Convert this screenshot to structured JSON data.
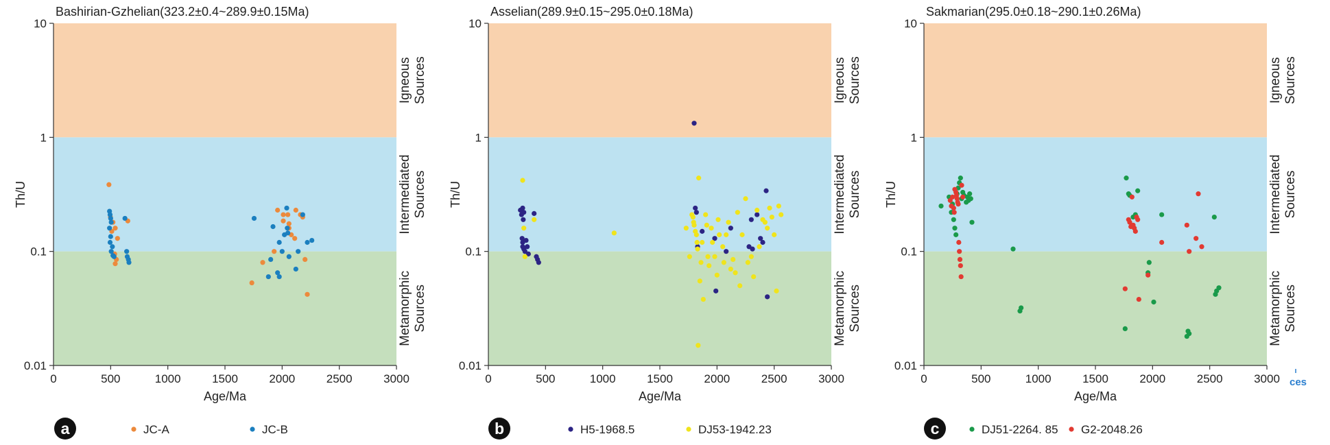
{
  "chart_data": [
    {
      "type": "scatter",
      "panel_letter": "a",
      "title": "Bashirian-Gzhelian(323.2±0.4~289.9±0.15Ma)",
      "xlabel": "Age/Ma",
      "ylabel": "Th/U",
      "xlim": [
        0,
        3000
      ],
      "ylim": [
        0.01,
        10
      ],
      "yscale": "log",
      "x_ticks": [
        "0",
        "500",
        "1000",
        "1500",
        "2000",
        "2500",
        "3000"
      ],
      "y_ticks": [
        "0.01",
        "0.1",
        "1",
        "10"
      ],
      "regions": [
        {
          "label": [
            "Igneous",
            "Sources"
          ],
          "from": 1,
          "to": 10,
          "color": "#f9d2ae"
        },
        {
          "label": [
            "Intermediated",
            "Sources"
          ],
          "from": 0.1,
          "to": 1,
          "color": "#bde2f1"
        },
        {
          "label": [
            "Metamorphic",
            "Sources"
          ],
          "from": 0.01,
          "to": 0.1,
          "color": "#c5dfbd"
        }
      ],
      "series": [
        {
          "name": "JC-A",
          "color": "#ec8a3c",
          "points": [
            [
              485,
              0.385
            ],
            [
              498,
              0.2
            ],
            [
              520,
              0.18
            ],
            [
              540,
              0.16
            ],
            [
              510,
              0.15
            ],
            [
              560,
              0.13
            ],
            [
              535,
              0.095
            ],
            [
              550,
              0.085
            ],
            [
              540,
              0.078
            ],
            [
              650,
              0.185
            ],
            [
              1735,
              0.053
            ],
            [
              1830,
              0.08
            ],
            [
              1930,
              0.1
            ],
            [
              1960,
              0.23
            ],
            [
              2010,
              0.21
            ],
            [
              2010,
              0.185
            ],
            [
              2050,
              0.21
            ],
            [
              2060,
              0.16
            ],
            [
              2060,
              0.175
            ],
            [
              2080,
              0.14
            ],
            [
              2110,
              0.13
            ],
            [
              2120,
              0.23
            ],
            [
              2160,
              0.21
            ],
            [
              2180,
              0.2
            ],
            [
              2200,
              0.085
            ],
            [
              2220,
              0.042
            ]
          ]
        },
        {
          "name": "JC-B",
          "color": "#1b7fbf",
          "points": [
            [
              490,
              0.225
            ],
            [
              495,
              0.21
            ],
            [
              500,
              0.195
            ],
            [
              505,
              0.18
            ],
            [
              490,
              0.16
            ],
            [
              500,
              0.135
            ],
            [
              495,
              0.12
            ],
            [
              515,
              0.11
            ],
            [
              505,
              0.1
            ],
            [
              520,
              0.092
            ],
            [
              530,
              0.09
            ],
            [
              625,
              0.195
            ],
            [
              640,
              0.1
            ],
            [
              645,
              0.09
            ],
            [
              655,
              0.085
            ],
            [
              660,
              0.08
            ],
            [
              1755,
              0.195
            ],
            [
              1880,
              0.06
            ],
            [
              1900,
              0.085
            ],
            [
              1920,
              0.165
            ],
            [
              1960,
              0.065
            ],
            [
              1975,
              0.06
            ],
            [
              1975,
              0.12
            ],
            [
              2000,
              0.1
            ],
            [
              2020,
              0.14
            ],
            [
              2040,
              0.24
            ],
            [
              2045,
              0.16
            ],
            [
              2050,
              0.145
            ],
            [
              2060,
              0.09
            ],
            [
              2120,
              0.07
            ],
            [
              2140,
              0.1
            ],
            [
              2180,
              0.21
            ],
            [
              2220,
              0.12
            ],
            [
              2260,
              0.125
            ]
          ]
        }
      ],
      "legend": [
        "JC-A",
        "JC-B"
      ]
    },
    {
      "type": "scatter",
      "panel_letter": "b",
      "title": "Asselian(289.9±0.15~295.0±0.18Ma)",
      "xlabel": "Age/Ma",
      "ylabel": "Th/U",
      "xlim": [
        0,
        3000
      ],
      "ylim": [
        0.01,
        10
      ],
      "yscale": "log",
      "x_ticks": [
        "0",
        "500",
        "1000",
        "1500",
        "2000",
        "2500",
        "3000"
      ],
      "y_ticks": [
        "0.01",
        "0.1",
        "1",
        "10"
      ],
      "regions": [
        {
          "label": [
            "Igneous",
            "Sources"
          ],
          "from": 1,
          "to": 10,
          "color": "#f9d2ae"
        },
        {
          "label": [
            "Intermediated",
            "Sources"
          ],
          "from": 0.1,
          "to": 1,
          "color": "#bde2f1"
        },
        {
          "label": [
            "Metamorphic",
            "Sources"
          ],
          "from": 0.01,
          "to": 0.1,
          "color": "#c5dfbd"
        }
      ],
      "series": [
        {
          "name": "H5-1968.5",
          "color": "#2c2484",
          "points": [
            [
              280,
              0.23
            ],
            [
              290,
              0.21
            ],
            [
              300,
              0.24
            ],
            [
              305,
              0.19
            ],
            [
              310,
              0.22
            ],
            [
              295,
              0.13
            ],
            [
              300,
              0.12
            ],
            [
              300,
              0.11
            ],
            [
              310,
              0.105
            ],
            [
              320,
              0.1
            ],
            [
              330,
              0.125
            ],
            [
              340,
              0.11
            ],
            [
              350,
              0.095
            ],
            [
              400,
              0.215
            ],
            [
              420,
              0.09
            ],
            [
              430,
              0.085
            ],
            [
              440,
              0.08
            ],
            [
              1800,
              1.33
            ],
            [
              1810,
              0.24
            ],
            [
              1820,
              0.22
            ],
            [
              1830,
              0.11
            ],
            [
              1870,
              0.15
            ],
            [
              1980,
              0.13
            ],
            [
              1990,
              0.045
            ],
            [
              2080,
              0.1
            ],
            [
              2120,
              0.16
            ],
            [
              2280,
              0.11
            ],
            [
              2300,
              0.19
            ],
            [
              2310,
              0.105
            ],
            [
              2350,
              0.21
            ],
            [
              2380,
              0.13
            ],
            [
              2400,
              0.12
            ],
            [
              2430,
              0.34
            ],
            [
              2440,
              0.04
            ]
          ]
        },
        {
          "name": "DJ53-1942.23",
          "color": "#f0e41c",
          "points": [
            [
              300,
              0.42
            ],
            [
              310,
              0.16
            ],
            [
              320,
              0.09
            ],
            [
              400,
              0.19
            ],
            [
              1100,
              0.145
            ],
            [
              1730,
              0.16
            ],
            [
              1760,
              0.09
            ],
            [
              1780,
              0.21
            ],
            [
              1790,
              0.2
            ],
            [
              1795,
              0.18
            ],
            [
              1800,
              0.17
            ],
            [
              1810,
              0.15
            ],
            [
              1820,
              0.14
            ],
            [
              1825,
              0.12
            ],
            [
              1830,
              0.105
            ],
            [
              1835,
              0.015
            ],
            [
              1840,
              0.44
            ],
            [
              1850,
              0.055
            ],
            [
              1860,
              0.08
            ],
            [
              1870,
              0.12
            ],
            [
              1880,
              0.038
            ],
            [
              1900,
              0.21
            ],
            [
              1910,
              0.17
            ],
            [
              1920,
              0.09
            ],
            [
              1930,
              0.075
            ],
            [
              1950,
              0.16
            ],
            [
              1960,
              0.12
            ],
            [
              1980,
              0.09
            ],
            [
              2000,
              0.062
            ],
            [
              2010,
              0.19
            ],
            [
              2020,
              0.14
            ],
            [
              2050,
              0.11
            ],
            [
              2060,
              0.08
            ],
            [
              2080,
              0.14
            ],
            [
              2100,
              0.18
            ],
            [
              2120,
              0.07
            ],
            [
              2140,
              0.085
            ],
            [
              2160,
              0.065
            ],
            [
              2180,
              0.22
            ],
            [
              2200,
              0.05
            ],
            [
              2220,
              0.14
            ],
            [
              2250,
              0.29
            ],
            [
              2270,
              0.08
            ],
            [
              2300,
              0.09
            ],
            [
              2320,
              0.06
            ],
            [
              2350,
              0.23
            ],
            [
              2370,
              0.11
            ],
            [
              2400,
              0.19
            ],
            [
              2420,
              0.18
            ],
            [
              2440,
              0.16
            ],
            [
              2460,
              0.24
            ],
            [
              2480,
              0.2
            ],
            [
              2500,
              0.14
            ],
            [
              2520,
              0.045
            ],
            [
              2540,
              0.25
            ],
            [
              2560,
              0.21
            ]
          ]
        }
      ],
      "legend": [
        "H5-1968.5",
        "DJ53-1942.23"
      ]
    },
    {
      "type": "scatter",
      "panel_letter": "c",
      "title": "Sakmarian(295.0±0.18~290.1±0.26Ma)",
      "xlabel": "Age/Ma",
      "ylabel": "Th/U",
      "xlim": [
        0,
        3000
      ],
      "ylim": [
        0.01,
        10
      ],
      "yscale": "log",
      "x_ticks": [
        "0",
        "500",
        "1000",
        "1500",
        "2000",
        "2500",
        "3000"
      ],
      "y_ticks": [
        "0.01",
        "0.1",
        "1",
        "10"
      ],
      "regions": [
        {
          "label": [
            "Igneous",
            "Sources"
          ],
          "from": 1,
          "to": 10,
          "color": "#f9d2ae"
        },
        {
          "label": [
            "Intermediated",
            "Sources"
          ],
          "from": 0.1,
          "to": 1,
          "color": "#bde2f1"
        },
        {
          "label": [
            "Metamorphic",
            "Sources"
          ],
          "from": 0.01,
          "to": 0.1,
          "color": "#c5dfbd"
        }
      ],
      "series": [
        {
          "name": "DJ51-2264. 85",
          "color": "#1a9a4a",
          "points": [
            [
              150,
              0.25
            ],
            [
              220,
              0.3
            ],
            [
              240,
              0.22
            ],
            [
              250,
              0.26
            ],
            [
              260,
              0.19
            ],
            [
              270,
              0.16
            ],
            [
              280,
              0.14
            ],
            [
              290,
              0.32
            ],
            [
              300,
              0.36
            ],
            [
              310,
              0.4
            ],
            [
              320,
              0.44
            ],
            [
              330,
              0.29
            ],
            [
              340,
              0.33
            ],
            [
              350,
              0.31
            ],
            [
              370,
              0.27
            ],
            [
              380,
              0.3
            ],
            [
              390,
              0.28
            ],
            [
              400,
              0.32
            ],
            [
              410,
              0.29
            ],
            [
              420,
              0.18
            ],
            [
              780,
              0.105
            ],
            [
              840,
              0.03
            ],
            [
              850,
              0.032
            ],
            [
              1760,
              0.021
            ],
            [
              1770,
              0.44
            ],
            [
              1790,
              0.32
            ],
            [
              1800,
              0.31
            ],
            [
              1830,
              0.2
            ],
            [
              1850,
              0.21
            ],
            [
              1870,
              0.34
            ],
            [
              1960,
              0.065
            ],
            [
              1970,
              0.08
            ],
            [
              2010,
              0.036
            ],
            [
              2080,
              0.21
            ],
            [
              2300,
              0.018
            ],
            [
              2310,
              0.02
            ],
            [
              2320,
              0.019
            ],
            [
              2540,
              0.2
            ],
            [
              2550,
              0.042
            ],
            [
              2560,
              0.045
            ],
            [
              2580,
              0.048
            ]
          ]
        },
        {
          "name": "G2-2048.26",
          "color": "#e23a32",
          "points": [
            [
              230,
              0.28
            ],
            [
              240,
              0.25
            ],
            [
              250,
              0.3
            ],
            [
              260,
              0.24
            ],
            [
              265,
              0.22
            ],
            [
              270,
              0.35
            ],
            [
              280,
              0.33
            ],
            [
              285,
              0.31
            ],
            [
              290,
              0.29
            ],
            [
              295,
              0.27
            ],
            [
              300,
              0.26
            ],
            [
              305,
              0.12
            ],
            [
              310,
              0.1
            ],
            [
              315,
              0.085
            ],
            [
              320,
              0.075
            ],
            [
              325,
              0.06
            ],
            [
              330,
              0.38
            ],
            [
              340,
              0.3
            ],
            [
              1760,
              0.047
            ],
            [
              1790,
              0.19
            ],
            [
              1800,
              0.18
            ],
            [
              1810,
              0.165
            ],
            [
              1820,
              0.3
            ],
            [
              1830,
              0.17
            ],
            [
              1840,
              0.16
            ],
            [
              1850,
              0.15
            ],
            [
              1860,
              0.2
            ],
            [
              1870,
              0.19
            ],
            [
              1880,
              0.038
            ],
            [
              1960,
              0.062
            ],
            [
              2080,
              0.12
            ],
            [
              2300,
              0.17
            ],
            [
              2320,
              0.1
            ],
            [
              2380,
              0.13
            ],
            [
              2400,
              0.32
            ],
            [
              2430,
              0.11
            ]
          ]
        }
      ],
      "legend": [
        "DJ51-2264. 85",
        "G2-2048.26"
      ],
      "stray_text": "ces"
    }
  ]
}
